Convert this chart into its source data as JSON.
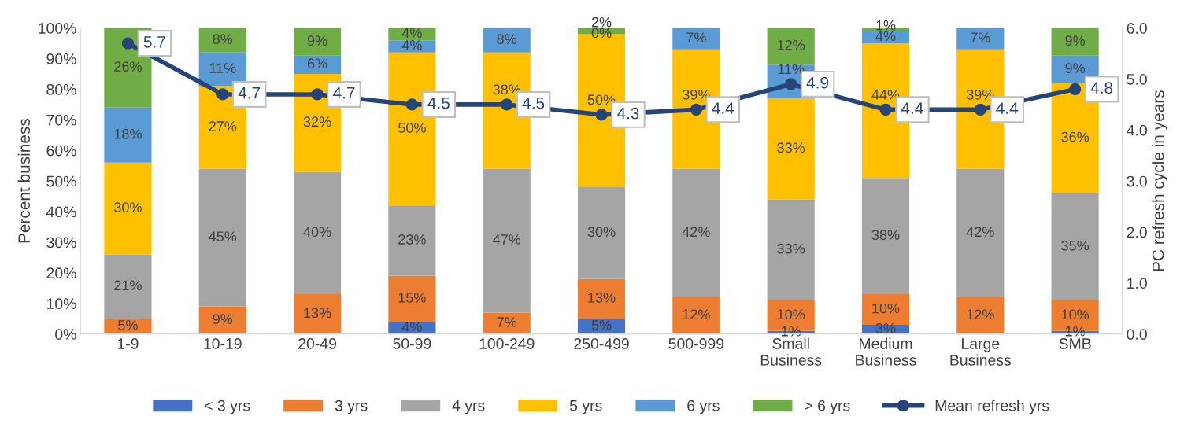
{
  "chart_data": {
    "type": "bar",
    "stacked": true,
    "ylabel": "Percent business",
    "y2label": "PC refresh cycle in years",
    "categories": [
      "1-9",
      "10-19",
      "20-49",
      "50-99",
      "100-249",
      "250-499",
      "500-999",
      "Small\nBusiness",
      "Medium\nBusiness",
      "Large\nBusiness",
      "SMB"
    ],
    "series": [
      {
        "name": "< 3 yrs",
        "color": "#4472c4",
        "values": [
          0,
          0,
          0,
          4,
          0,
          5,
          0,
          1,
          3,
          0,
          1
        ],
        "value_labels": [
          null,
          null,
          null,
          "4%",
          null,
          "5%",
          null,
          "1%",
          "3%",
          null,
          "1%"
        ]
      },
      {
        "name": "3 yrs",
        "color": "#ed7d31",
        "values": [
          5,
          9,
          13,
          15,
          7,
          13,
          12,
          10,
          10,
          12,
          10
        ],
        "value_labels": [
          "5%",
          "9%",
          "13%",
          "15%",
          "7%",
          "13%",
          "12%",
          "10%",
          "10%",
          "12%",
          "10%"
        ]
      },
      {
        "name": "4 yrs",
        "color": "#a5a5a5",
        "values": [
          21,
          45,
          40,
          23,
          47,
          30,
          42,
          33,
          38,
          42,
          35
        ],
        "value_labels": [
          "21%",
          "45%",
          "40%",
          "23%",
          "47%",
          "30%",
          "42%",
          "33%",
          "38%",
          "42%",
          "35%"
        ]
      },
      {
        "name": "5 yrs",
        "color": "#ffc000",
        "values": [
          30,
          27,
          32,
          50,
          38,
          50,
          39,
          33,
          44,
          39,
          36
        ],
        "value_labels": [
          "30%",
          "27%",
          "32%",
          "50%",
          "38%",
          "50%",
          "39%",
          "33%",
          "44%",
          "39%",
          "36%"
        ]
      },
      {
        "name": "6 yrs",
        "color": "#5b9bd5",
        "values": [
          18,
          11,
          6,
          4,
          8,
          0,
          7,
          11,
          4,
          7,
          9
        ],
        "value_labels": [
          "18%",
          "11%",
          "6%",
          "4%",
          "8%",
          "0%",
          "7%",
          "11%",
          "4%",
          "7%",
          "9%"
        ]
      },
      {
        "name": "> 6 yrs",
        "color": "#70ad47",
        "values": [
          26,
          8,
          9,
          4,
          0,
          2,
          0,
          12,
          1,
          0,
          9
        ],
        "value_labels": [
          "26%",
          "8%",
          "9%",
          "4%",
          null,
          "2%",
          null,
          "12%",
          "1%",
          null,
          "9%"
        ]
      },
      {
        "name": "Mean refresh yrs",
        "type": "line",
        "axis": "y2",
        "color": "#264478",
        "marker": "circle",
        "values": [
          5.7,
          4.7,
          4.7,
          4.5,
          4.5,
          4.3,
          4.4,
          4.9,
          4.4,
          4.4,
          4.8
        ],
        "value_labels": [
          "5.7",
          "4.7",
          "4.7",
          "4.5",
          "4.5",
          "4.3",
          "4.4",
          "4.9",
          "4.4",
          "4.4",
          "4.8"
        ]
      }
    ],
    "ylim": [
      0,
      100
    ],
    "yticks": [
      {
        "value": 0,
        "label": "0%"
      },
      {
        "value": 10,
        "label": "10%"
      },
      {
        "value": 20,
        "label": "20%"
      },
      {
        "value": 30,
        "label": "30%"
      },
      {
        "value": 40,
        "label": "40%"
      },
      {
        "value": 50,
        "label": "50%"
      },
      {
        "value": 60,
        "label": "60%"
      },
      {
        "value": 70,
        "label": "70%"
      },
      {
        "value": 80,
        "label": "80%"
      },
      {
        "value": 90,
        "label": "90%"
      },
      {
        "value": 100,
        "label": "100%"
      }
    ],
    "y2lim": [
      0,
      6
    ],
    "y2ticks": [
      {
        "value": 0,
        "label": "0.0"
      },
      {
        "value": 1,
        "label": "1.0"
      },
      {
        "value": 2,
        "label": "2.0"
      },
      {
        "value": 3,
        "label": "3.0"
      },
      {
        "value": 4,
        "label": "4.0"
      },
      {
        "value": 5,
        "label": "5.0"
      },
      {
        "value": 6,
        "label": "6.0"
      }
    ],
    "legend": "bottom"
  }
}
